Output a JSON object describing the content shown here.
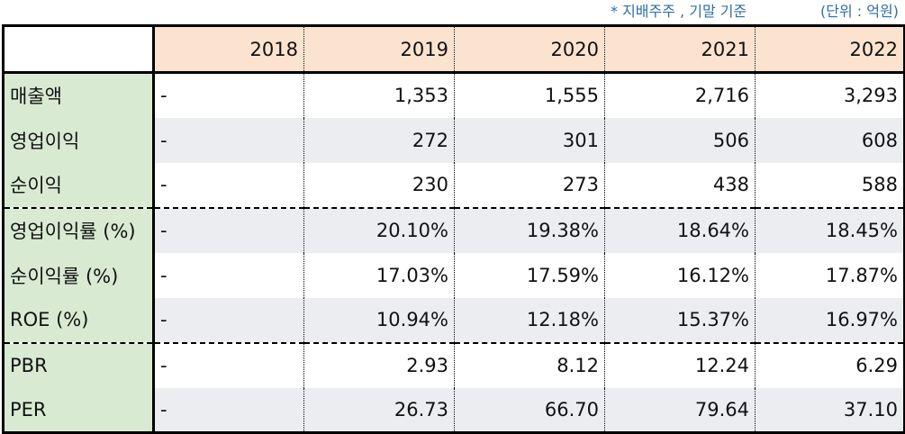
{
  "notes": {
    "basis": "* 지배주주 , 기말 기준",
    "unit": "(단위 : 억원)"
  },
  "table": {
    "corner": "",
    "years": [
      "2018",
      "2019",
      "2020",
      "2021",
      "2022"
    ],
    "rows": [
      {
        "label": "매출액",
        "values": [
          "-",
          "1,353",
          "1,555",
          "2,716",
          "3,293"
        ]
      },
      {
        "label": "영업이익",
        "values": [
          "-",
          "272",
          "301",
          "506",
          "608"
        ]
      },
      {
        "label": "순이익",
        "values": [
          "-",
          "230",
          "273",
          "438",
          "588"
        ]
      },
      {
        "label": "영업이익률 (%)",
        "values": [
          "-",
          "20.10%",
          "19.38%",
          "18.64%",
          "18.45%"
        ]
      },
      {
        "label": "순이익률 (%)",
        "values": [
          "-",
          "17.03%",
          "17.59%",
          "16.12%",
          "17.87%"
        ]
      },
      {
        "label": "ROE (%)",
        "values": [
          "-",
          "10.94%",
          "12.18%",
          "15.37%",
          "16.97%"
        ]
      },
      {
        "label": "PBR",
        "values": [
          "-",
          "2.93",
          "8.12",
          "12.24",
          "6.29"
        ]
      },
      {
        "label": "PER",
        "values": [
          "-",
          "26.73",
          "66.70",
          "79.64",
          "37.10"
        ]
      }
    ]
  },
  "colors": {
    "header_bg": "#fbe3cf",
    "label_bg": "#d9ead3",
    "alt_row_bg": "#ebedf0",
    "note_text": "#2f6fa3"
  }
}
